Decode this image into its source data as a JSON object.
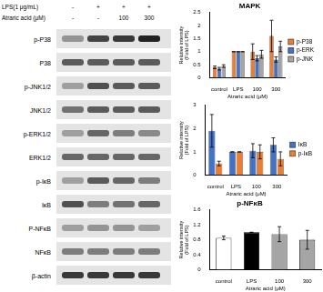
{
  "blot": {
    "header": [
      {
        "label": "LPS(1 μg/mL)",
        "lanes": [
          "-",
          "+",
          "+",
          "+"
        ]
      },
      {
        "label": "Atraric acid (μM)",
        "lanes": [
          "-",
          "-",
          "100",
          "300"
        ]
      }
    ],
    "rows": [
      "p-P38",
      "P38",
      "p-JNK1/2",
      "JNK1/2",
      "p-ERK1/2",
      "ERK1/2",
      "p-IκB",
      "IκB",
      "P-NFκB",
      "NFκB",
      "β-actin"
    ]
  },
  "chart_data": [
    {
      "type": "bar",
      "title": "MAPK",
      "y_label": [
        "Relative intensity",
        "(Fold of LPS)"
      ],
      "x_label": "Atraric acid (μM)",
      "categories": [
        "control",
        "LPS",
        "100",
        "300"
      ],
      "series": [
        {
          "name": "p-P38",
          "color": "#ed7d31",
          "values": [
            0.4,
            1.0,
            1.0,
            1.6
          ],
          "errors": [
            0.05,
            0,
            0.3,
            0.6
          ]
        },
        {
          "name": "p-ERK",
          "color": "#4472c4",
          "values": [
            0.35,
            1.0,
            0.75,
            0.7
          ],
          "errors": [
            0.05,
            0,
            0.1,
            0.1
          ]
        },
        {
          "name": "p-JNK",
          "color": "#a5a5a5",
          "values": [
            0.45,
            1.0,
            0.9,
            1.2
          ],
          "errors": [
            0.05,
            0,
            0.15,
            0.2
          ]
        }
      ],
      "ylim": [
        0,
        2.5
      ],
      "yticks": [
        0,
        0.5,
        1,
        1.5,
        2,
        2.5
      ],
      "legend": "right"
    },
    {
      "type": "bar",
      "title": "",
      "y_label": [
        "Relative intensity",
        "(Fold of LPS)"
      ],
      "x_label": "Atraric acid (μM)",
      "categories": [
        "control",
        "LPS",
        "100",
        "300"
      ],
      "series": [
        {
          "name": "IκB",
          "color": "#4472c4",
          "values": [
            1.9,
            1.0,
            1.05,
            1.3
          ],
          "errors": [
            0.7,
            0,
            0.3,
            0.3
          ]
        },
        {
          "name": "p-IκB",
          "color": "#ed7d31",
          "values": [
            0.5,
            1.0,
            1.0,
            0.7
          ],
          "errors": [
            0.1,
            0,
            0.3,
            0.3
          ]
        }
      ],
      "ylim": [
        0,
        3
      ],
      "yticks": [
        0,
        1,
        2,
        3
      ],
      "legend": "right"
    },
    {
      "type": "bar",
      "title": "p-NFκB",
      "y_label": [
        "Relative intensity",
        "(Fold of LPS)"
      ],
      "x_label": "Atraric acid (μM)",
      "categories": [
        "control",
        "LPS",
        "100",
        "300"
      ],
      "values": [
        0.85,
        1.0,
        0.95,
        0.8
      ],
      "errors": [
        0.05,
        0,
        0.2,
        0.25
      ],
      "colors": [
        "#ffffff",
        "#000000",
        "#a5a5a5",
        "#a5a5a5"
      ],
      "ylim": [
        0,
        1.6
      ],
      "yticks": [
        0,
        0.4,
        0.8,
        1.2,
        1.6
      ]
    }
  ]
}
